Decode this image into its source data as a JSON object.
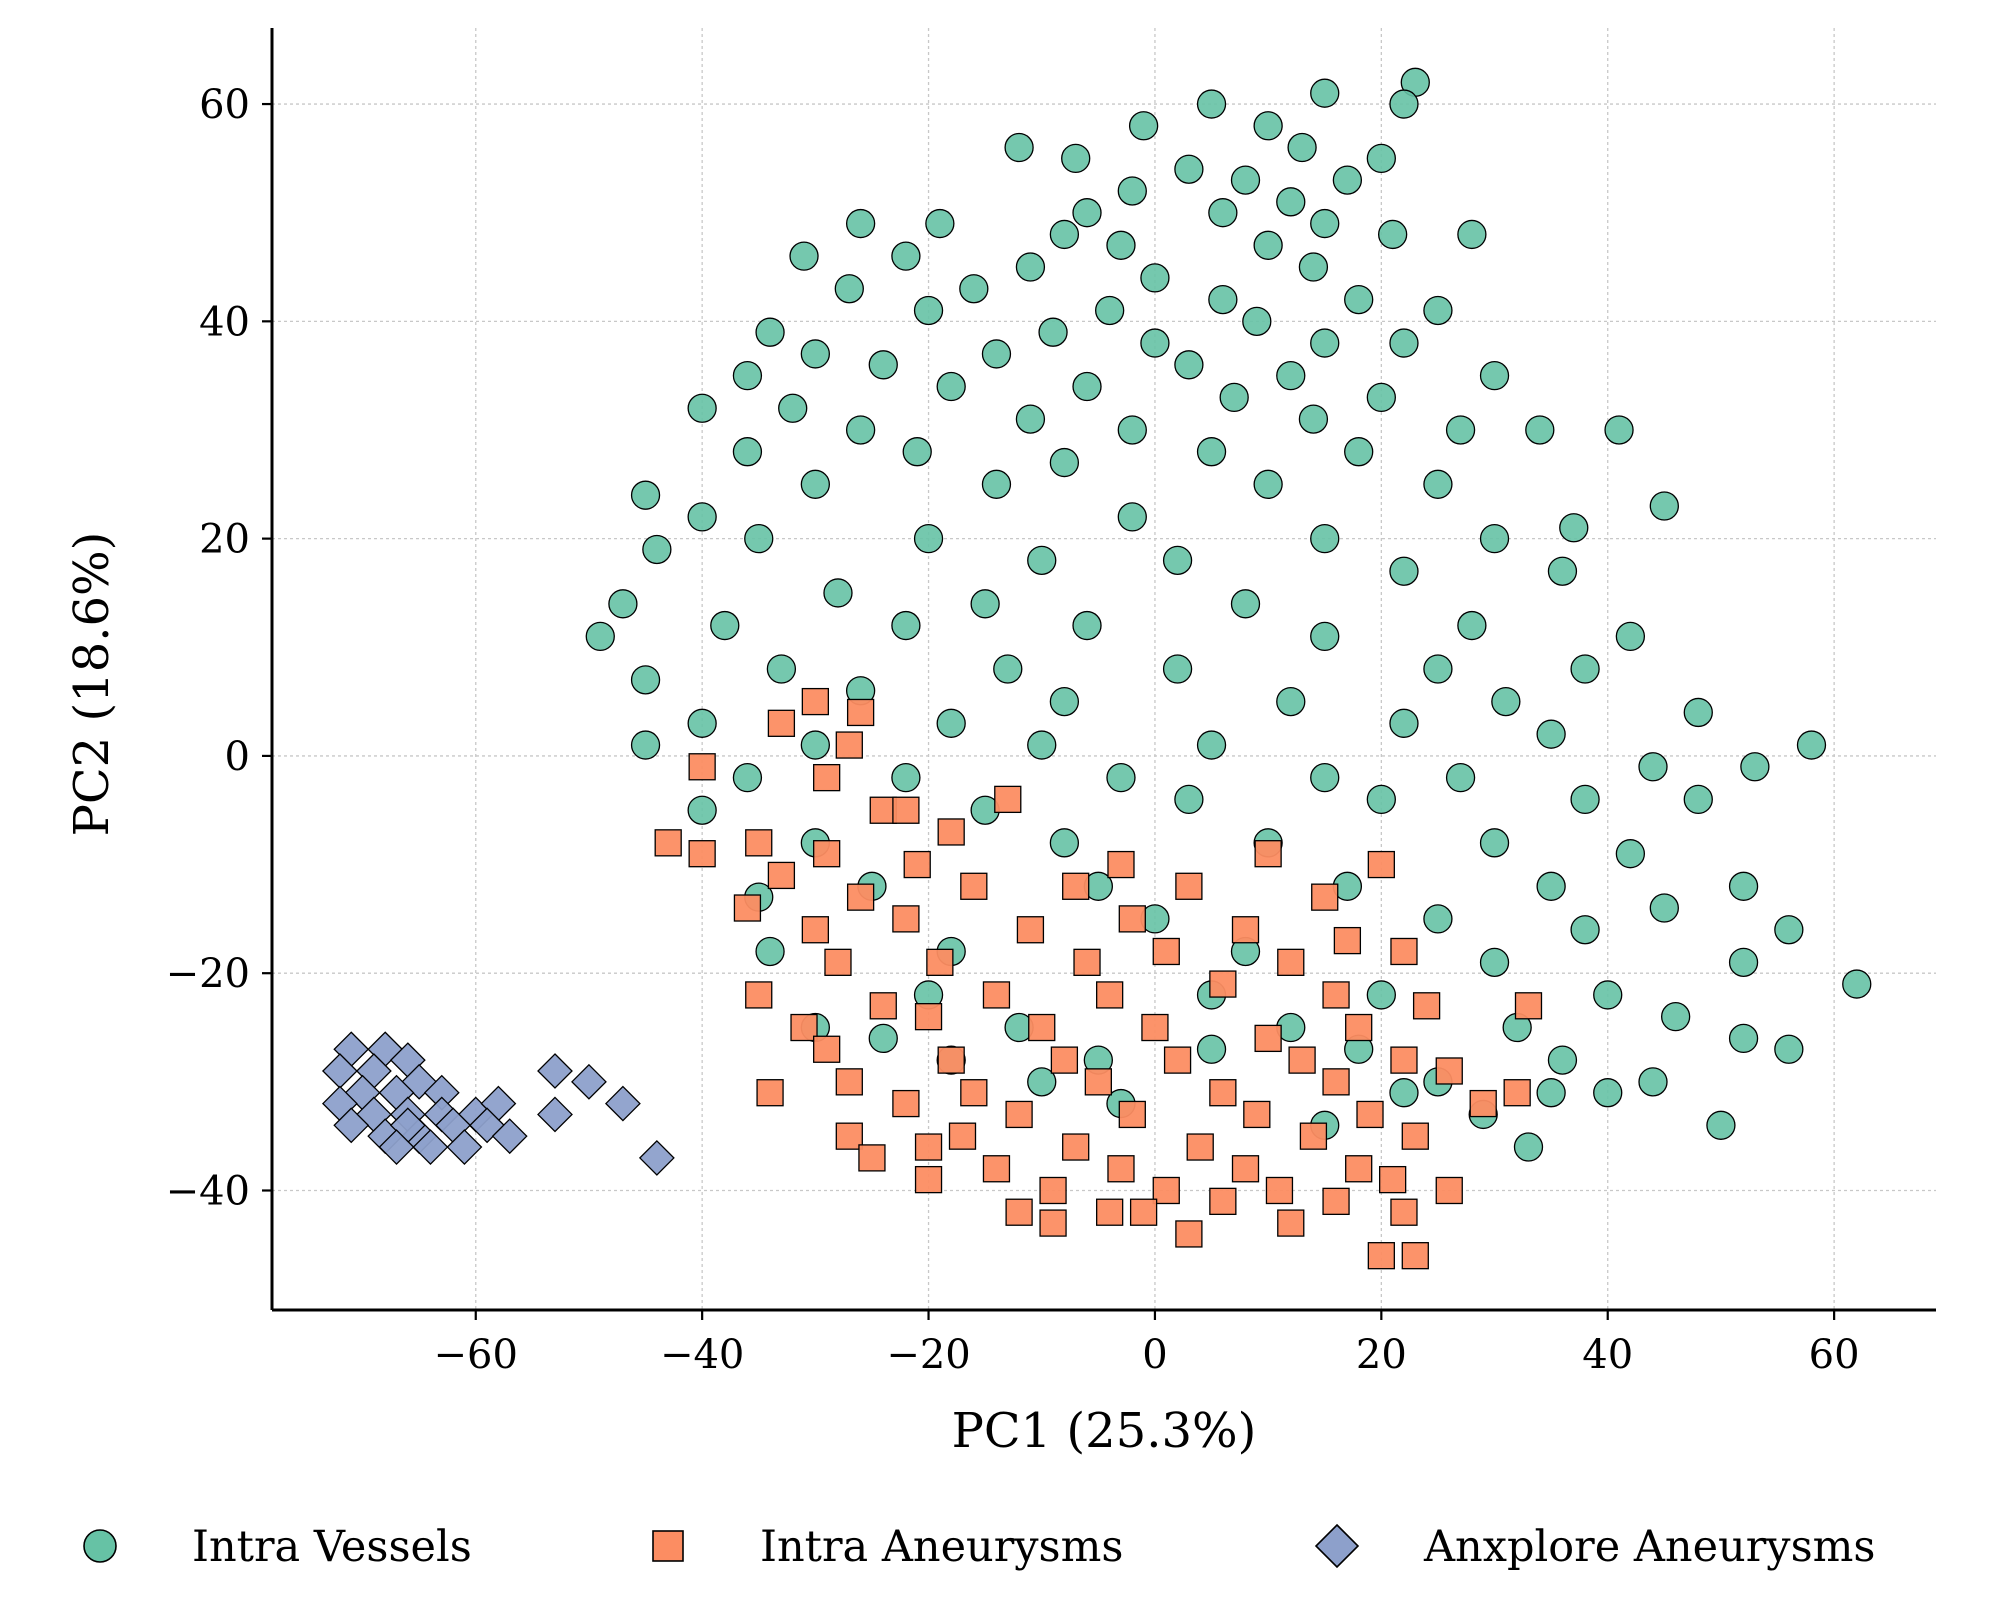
{
  "chart_data": {
    "type": "scatter",
    "title": "",
    "xlabel": "PC1 (25.3%)",
    "ylabel": "PC2 (18.6%)",
    "xlim": [
      -78,
      69
    ],
    "ylim": [
      -51,
      67
    ],
    "xticks": [
      -60,
      -40,
      -20,
      0,
      20,
      40,
      60
    ],
    "yticks": [
      -40,
      -20,
      0,
      20,
      40,
      60
    ],
    "xtick_labels": [
      "−60",
      "−40",
      "−20",
      "0",
      "20",
      "40",
      "60"
    ],
    "ytick_labels": [
      "−40",
      "−20",
      "0",
      "20",
      "40",
      "60"
    ],
    "grid": true,
    "legend_position": "bottom",
    "series": [
      {
        "name": "Intra Vessels",
        "marker": "circle",
        "color": "#66c2a5",
        "points": [
          [
            23,
            62
          ],
          [
            15,
            61
          ],
          [
            22,
            60
          ],
          [
            5,
            60
          ],
          [
            -1,
            58
          ],
          [
            10,
            58
          ],
          [
            -12,
            56
          ],
          [
            13,
            56
          ],
          [
            -7,
            55
          ],
          [
            20,
            55
          ],
          [
            3,
            54
          ],
          [
            8,
            53
          ],
          [
            17,
            53
          ],
          [
            -2,
            52
          ],
          [
            12,
            51
          ],
          [
            -6,
            50
          ],
          [
            6,
            50
          ],
          [
            15,
            49
          ],
          [
            -19,
            49
          ],
          [
            28,
            48
          ],
          [
            -26,
            49
          ],
          [
            -8,
            48
          ],
          [
            -3,
            47
          ],
          [
            21,
            48
          ],
          [
            10,
            47
          ],
          [
            -22,
            46
          ],
          [
            -31,
            46
          ],
          [
            -11,
            45
          ],
          [
            0,
            44
          ],
          [
            14,
            45
          ],
          [
            -16,
            43
          ],
          [
            -27,
            43
          ],
          [
            6,
            42
          ],
          [
            18,
            42
          ],
          [
            -20,
            41
          ],
          [
            -4,
            41
          ],
          [
            25,
            41
          ],
          [
            9,
            40
          ],
          [
            -34,
            39
          ],
          [
            -9,
            39
          ],
          [
            0,
            38
          ],
          [
            15,
            38
          ],
          [
            22,
            38
          ],
          [
            -30,
            37
          ],
          [
            -14,
            37
          ],
          [
            3,
            36
          ],
          [
            -24,
            36
          ],
          [
            12,
            35
          ],
          [
            30,
            35
          ],
          [
            -36,
            35
          ],
          [
            -18,
            34
          ],
          [
            -6,
            34
          ],
          [
            7,
            33
          ],
          [
            20,
            33
          ],
          [
            -32,
            32
          ],
          [
            -40,
            32
          ],
          [
            -11,
            31
          ],
          [
            14,
            31
          ],
          [
            27,
            30
          ],
          [
            -26,
            30
          ],
          [
            -2,
            30
          ],
          [
            34,
            30
          ],
          [
            -36,
            28
          ],
          [
            -21,
            28
          ],
          [
            5,
            28
          ],
          [
            18,
            28
          ],
          [
            41,
            30
          ],
          [
            -8,
            27
          ],
          [
            -45,
            24
          ],
          [
            -30,
            25
          ],
          [
            -14,
            25
          ],
          [
            10,
            25
          ],
          [
            25,
            25
          ],
          [
            -40,
            22
          ],
          [
            -2,
            22
          ],
          [
            45,
            23
          ],
          [
            37,
            21
          ],
          [
            -35,
            20
          ],
          [
            -20,
            20
          ],
          [
            15,
            20
          ],
          [
            30,
            20
          ],
          [
            -44,
            19
          ],
          [
            -10,
            18
          ],
          [
            2,
            18
          ],
          [
            22,
            17
          ],
          [
            36,
            17
          ],
          [
            -47,
            14
          ],
          [
            -28,
            15
          ],
          [
            -15,
            14
          ],
          [
            8,
            14
          ],
          [
            28,
            12
          ],
          [
            42,
            11
          ],
          [
            -49,
            11
          ],
          [
            -38,
            12
          ],
          [
            -22,
            12
          ],
          [
            -6,
            12
          ],
          [
            15,
            11
          ],
          [
            -33,
            8
          ],
          [
            -13,
            8
          ],
          [
            2,
            8
          ],
          [
            25,
            8
          ],
          [
            38,
            8
          ],
          [
            -45,
            7
          ],
          [
            -26,
            6
          ],
          [
            -8,
            5
          ],
          [
            12,
            5
          ],
          [
            31,
            5
          ],
          [
            -40,
            3
          ],
          [
            -18,
            3
          ],
          [
            22,
            3
          ],
          [
            48,
            4
          ],
          [
            -45,
            1
          ],
          [
            -30,
            1
          ],
          [
            -10,
            1
          ],
          [
            5,
            1
          ],
          [
            35,
            2
          ],
          [
            58,
            1
          ],
          [
            -36,
            -2
          ],
          [
            -22,
            -2
          ],
          [
            -3,
            -2
          ],
          [
            15,
            -2
          ],
          [
            27,
            -2
          ],
          [
            44,
            -1
          ],
          [
            53,
            -1
          ],
          [
            -40,
            -5
          ],
          [
            -15,
            -5
          ],
          [
            3,
            -4
          ],
          [
            20,
            -4
          ],
          [
            38,
            -4
          ],
          [
            48,
            -4
          ],
          [
            -30,
            -8
          ],
          [
            -8,
            -8
          ],
          [
            10,
            -8
          ],
          [
            30,
            -8
          ],
          [
            42,
            -9
          ],
          [
            52,
            -12
          ],
          [
            -25,
            -12
          ],
          [
            -5,
            -12
          ],
          [
            17,
            -12
          ],
          [
            35,
            -12
          ],
          [
            45,
            -14
          ],
          [
            -35,
            -13
          ],
          [
            0,
            -15
          ],
          [
            25,
            -15
          ],
          [
            38,
            -16
          ],
          [
            56,
            -16
          ],
          [
            -34,
            -18
          ],
          [
            -18,
            -18
          ],
          [
            8,
            -18
          ],
          [
            30,
            -19
          ],
          [
            52,
            -19
          ],
          [
            -20,
            -22
          ],
          [
            5,
            -22
          ],
          [
            20,
            -22
          ],
          [
            40,
            -22
          ],
          [
            62,
            -21
          ],
          [
            -12,
            -25
          ],
          [
            12,
            -25
          ],
          [
            32,
            -25
          ],
          [
            46,
            -24
          ],
          [
            -24,
            -26
          ],
          [
            -5,
            -28
          ],
          [
            18,
            -27
          ],
          [
            36,
            -28
          ],
          [
            52,
            -26
          ],
          [
            56,
            -27
          ],
          [
            -18,
            -28
          ],
          [
            -3,
            -32
          ],
          [
            22,
            -31
          ],
          [
            44,
            -30
          ],
          [
            40,
            -31
          ],
          [
            35,
            -31
          ],
          [
            29,
            -33
          ],
          [
            50,
            -34
          ],
          [
            33,
            -36
          ],
          [
            -30,
            -25
          ],
          [
            -10,
            -30
          ],
          [
            5,
            -27
          ],
          [
            25,
            -30
          ],
          [
            15,
            -34
          ]
        ]
      },
      {
        "name": "Intra Aneurysms",
        "marker": "square",
        "color": "#fc8d62",
        "points": [
          [
            -30,
            5
          ],
          [
            -33,
            3
          ],
          [
            -26,
            4
          ],
          [
            -27,
            1
          ],
          [
            -40,
            -1
          ],
          [
            -29,
            -2
          ],
          [
            -13,
            -4
          ],
          [
            -24,
            -5
          ],
          [
            -22,
            -5
          ],
          [
            -43,
            -8
          ],
          [
            -35,
            -8
          ],
          [
            -18,
            -7
          ],
          [
            -40,
            -9
          ],
          [
            -29,
            -9
          ],
          [
            -21,
            -10
          ],
          [
            -3,
            -10
          ],
          [
            10,
            -9
          ],
          [
            20,
            -10
          ],
          [
            -33,
            -11
          ],
          [
            -26,
            -13
          ],
          [
            -16,
            -12
          ],
          [
            -7,
            -12
          ],
          [
            3,
            -12
          ],
          [
            15,
            -13
          ],
          [
            -36,
            -14
          ],
          [
            -30,
            -16
          ],
          [
            -22,
            -15
          ],
          [
            -11,
            -16
          ],
          [
            -2,
            -15
          ],
          [
            8,
            -16
          ],
          [
            17,
            -17
          ],
          [
            -28,
            -19
          ],
          [
            -19,
            -19
          ],
          [
            -6,
            -19
          ],
          [
            1,
            -18
          ],
          [
            12,
            -19
          ],
          [
            22,
            -18
          ],
          [
            -35,
            -22
          ],
          [
            -24,
            -23
          ],
          [
            -14,
            -22
          ],
          [
            -4,
            -22
          ],
          [
            6,
            -21
          ],
          [
            16,
            -22
          ],
          [
            24,
            -23
          ],
          [
            -31,
            -25
          ],
          [
            -20,
            -24
          ],
          [
            -10,
            -25
          ],
          [
            0,
            -25
          ],
          [
            10,
            -26
          ],
          [
            18,
            -25
          ],
          [
            33,
            -23
          ],
          [
            -29,
            -27
          ],
          [
            -18,
            -28
          ],
          [
            -8,
            -28
          ],
          [
            2,
            -28
          ],
          [
            13,
            -28
          ],
          [
            22,
            -28
          ],
          [
            -27,
            -30
          ],
          [
            -16,
            -31
          ],
          [
            -5,
            -30
          ],
          [
            6,
            -31
          ],
          [
            16,
            -30
          ],
          [
            26,
            -29
          ],
          [
            -34,
            -31
          ],
          [
            -22,
            -32
          ],
          [
            -12,
            -33
          ],
          [
            -2,
            -33
          ],
          [
            9,
            -33
          ],
          [
            19,
            -33
          ],
          [
            29,
            -32
          ],
          [
            32,
            -31
          ],
          [
            -27,
            -35
          ],
          [
            -17,
            -35
          ],
          [
            -7,
            -36
          ],
          [
            4,
            -36
          ],
          [
            14,
            -35
          ],
          [
            23,
            -35
          ],
          [
            -25,
            -37
          ],
          [
            -14,
            -38
          ],
          [
            -3,
            -38
          ],
          [
            8,
            -38
          ],
          [
            18,
            -38
          ],
          [
            -20,
            -39
          ],
          [
            -9,
            -40
          ],
          [
            1,
            -40
          ],
          [
            11,
            -40
          ],
          [
            21,
            -39
          ],
          [
            26,
            -40
          ],
          [
            -12,
            -42
          ],
          [
            -4,
            -42
          ],
          [
            6,
            -41
          ],
          [
            16,
            -41
          ],
          [
            22,
            -42
          ],
          [
            -9,
            -43
          ],
          [
            3,
            -44
          ],
          [
            20,
            -46
          ],
          [
            23,
            -46
          ],
          [
            -1,
            -42
          ],
          [
            12,
            -43
          ],
          [
            -20,
            -36
          ]
        ]
      },
      {
        "name": "Anxplore Aneurysms",
        "marker": "diamond",
        "color": "#8da0cb",
        "points": [
          [
            -71,
            -27
          ],
          [
            -68,
            -27
          ],
          [
            -72,
            -29
          ],
          [
            -69,
            -29
          ],
          [
            -66,
            -28
          ],
          [
            -65,
            -30
          ],
          [
            -70,
            -31
          ],
          [
            -67,
            -31
          ],
          [
            -63,
            -31
          ],
          [
            -72,
            -32
          ],
          [
            -69,
            -33
          ],
          [
            -66,
            -33
          ],
          [
            -63,
            -33
          ],
          [
            -60,
            -33
          ],
          [
            -58,
            -32
          ],
          [
            -71,
            -34
          ],
          [
            -68,
            -35
          ],
          [
            -65,
            -35
          ],
          [
            -62,
            -34
          ],
          [
            -59,
            -34
          ],
          [
            -64,
            -36
          ],
          [
            -61,
            -36
          ],
          [
            -66,
            -34
          ],
          [
            -67,
            -36
          ],
          [
            -53,
            -29
          ],
          [
            -50,
            -30
          ],
          [
            -47,
            -32
          ],
          [
            -53,
            -33
          ],
          [
            -44,
            -37
          ],
          [
            -57,
            -35
          ]
        ]
      }
    ]
  }
}
